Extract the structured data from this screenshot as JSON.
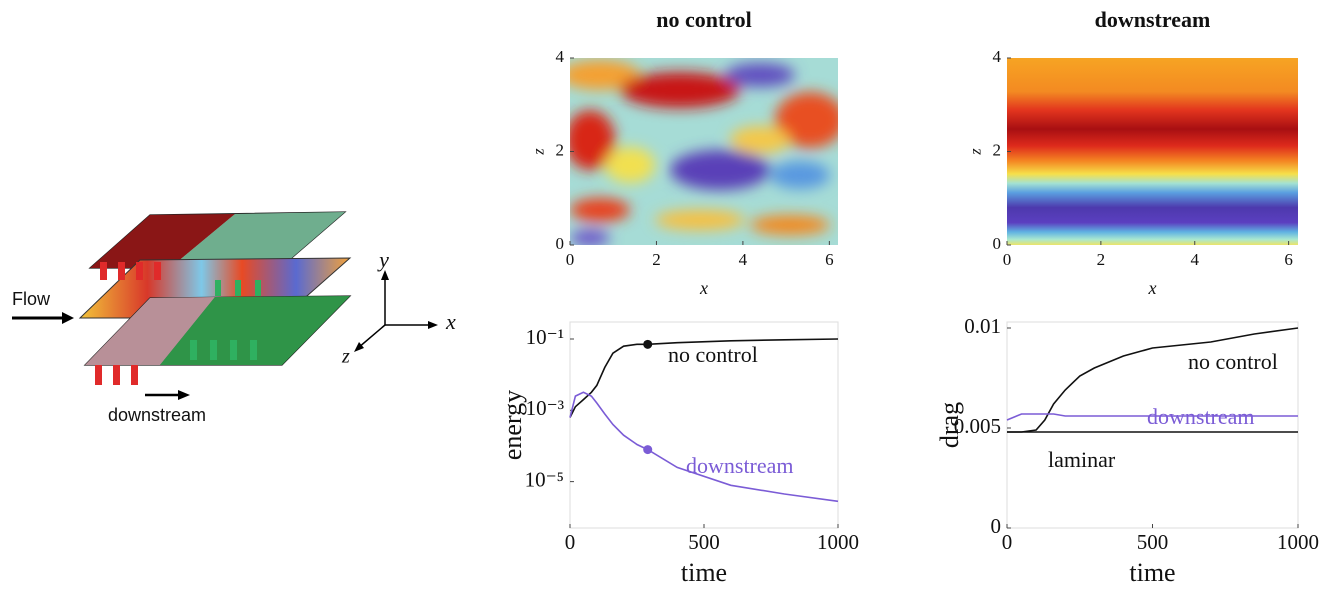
{
  "diagram": {
    "flow_label": "Flow",
    "control_label": "downstream",
    "axis_labels": [
      "y",
      "x",
      "z"
    ]
  },
  "chart_data": [
    {
      "type": "heatmap",
      "title": "no control",
      "xlabel": "x",
      "ylabel": "z",
      "xlim": [
        0,
        6.2
      ],
      "ylim": [
        0,
        4
      ],
      "xticks": [
        0,
        2,
        4,
        6
      ],
      "yticks": [
        0,
        2,
        4
      ]
    },
    {
      "type": "heatmap",
      "title": "downstream",
      "xlabel": "x",
      "ylabel": "z",
      "xlim": [
        0,
        6.2
      ],
      "ylim": [
        0,
        4
      ],
      "xticks": [
        0,
        2,
        4,
        6
      ],
      "yticks": [
        0,
        2,
        4
      ]
    },
    {
      "type": "line",
      "xlabel": "time",
      "ylabel": "energy",
      "yscale": "log",
      "xlim": [
        0,
        1000
      ],
      "ylim": [
        5e-07,
        0.3
      ],
      "xticks": [
        0,
        500,
        1000
      ],
      "yticks": [
        {
          "value": 0.1,
          "label": "10⁻¹"
        },
        {
          "value": 0.001,
          "label": "10⁻³"
        },
        {
          "value": 1e-05,
          "label": "10⁻⁵"
        }
      ],
      "x": [
        0,
        20,
        50,
        80,
        100,
        130,
        160,
        200,
        250,
        290,
        400,
        600,
        800,
        1000
      ],
      "marked_x": 290,
      "series": [
        {
          "name": "no control",
          "color": "#111111",
          "values": [
            0.00063,
            0.00126,
            0.002,
            0.0032,
            0.005,
            0.016,
            0.04,
            0.063,
            0.071,
            0.071,
            0.079,
            0.089,
            0.095,
            0.1
          ]
        },
        {
          "name": "downstream",
          "color": "#7b5cd6",
          "values": [
            0.00063,
            0.0025,
            0.0032,
            0.0025,
            0.0016,
            0.00079,
            0.0004,
            0.0002,
            0.00011,
            7.9e-05,
            2.5e-05,
            7.9e-06,
            4.5e-06,
            2.8e-06
          ]
        }
      ]
    },
    {
      "type": "line",
      "xlabel": "time",
      "ylabel": "drag",
      "xlim": [
        0,
        1000
      ],
      "ylim": [
        0,
        0.0103
      ],
      "xticks": [
        0,
        500,
        1000
      ],
      "yticks": [
        0,
        0.005,
        0.01
      ],
      "x": [
        0,
        50,
        100,
        130,
        160,
        200,
        250,
        300,
        400,
        500,
        700,
        850,
        1000
      ],
      "series": [
        {
          "name": "no control",
          "color": "#111111",
          "values": [
            0.0048,
            0.0048,
            0.0049,
            0.0054,
            0.0062,
            0.0069,
            0.0076,
            0.008,
            0.0086,
            0.009,
            0.0093,
            0.0097,
            0.01
          ]
        },
        {
          "name": "downstream",
          "color": "#7b5cd6",
          "values": [
            0.0054,
            0.0057,
            0.0057,
            0.0057,
            0.0057,
            0.0056,
            0.0056,
            0.0056,
            0.0056,
            0.0056,
            0.0056,
            0.0056,
            0.0056
          ]
        },
        {
          "name": "laminar",
          "color": "#111111",
          "values": [
            0.0048,
            0.0048,
            0.0048,
            0.0048,
            0.0048,
            0.0048,
            0.0048,
            0.0048,
            0.0048,
            0.0048,
            0.0048,
            0.0048,
            0.0048
          ]
        }
      ]
    }
  ]
}
